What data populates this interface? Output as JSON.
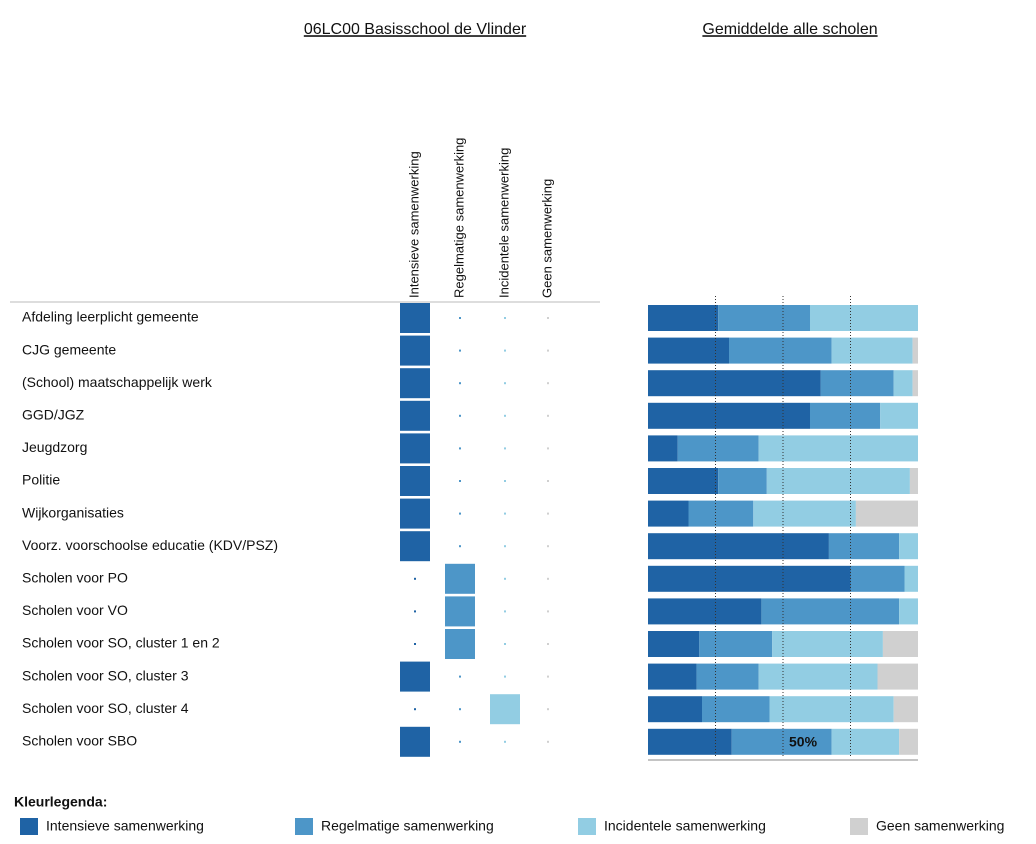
{
  "chart_data": {
    "type": "stacked-bar-matrix",
    "title": "06LC00 Basisschool de Vlinder",
    "comparison_title": "Gemiddelde alle scholen",
    "legend_title": "Kleurlegenda:",
    "categories": [
      "Afdeling leerplicht gemeente",
      "CJG gemeente",
      "(School) maatschappelijk werk",
      "GGD/JGZ",
      "Jeugdzorg",
      "Politie",
      "Wijkorganisaties",
      "Voorz. voorschoolse educatie (KDV/PSZ)",
      "Scholen voor PO",
      "Scholen voor VO",
      "Scholen voor SO, cluster 1 en 2",
      "Scholen voor SO, cluster 3",
      "Scholen voor SO, cluster 4",
      "Scholen voor SBO"
    ],
    "school_choice": [
      0,
      0,
      0,
      0,
      0,
      0,
      0,
      0,
      1,
      1,
      1,
      0,
      2,
      0
    ],
    "series": [
      {
        "name": "Intensieve samenwerking",
        "color": "#1f63a5",
        "values": [
          26,
          30,
          64,
          60,
          11,
          26,
          15,
          67,
          75,
          42,
          19,
          18,
          20,
          31
        ]
      },
      {
        "name": "Regelmatige samenwerking",
        "color": "#4d96c8",
        "values": [
          34,
          38,
          27,
          26,
          30,
          18,
          24,
          26,
          20,
          51,
          27,
          23,
          25,
          37
        ]
      },
      {
        "name": "Incidentele samenwerking",
        "color": "#92cde3",
        "values": [
          40,
          30,
          7,
          14,
          59,
          53,
          38,
          7,
          5,
          7,
          41,
          44,
          46,
          25
        ]
      },
      {
        "name": "Geen samenwerking",
        "color": "#d0d0d0",
        "values": [
          0,
          2,
          2,
          0,
          0,
          3,
          23,
          0,
          0,
          0,
          13,
          15,
          9,
          7
        ]
      }
    ],
    "xlim": [
      0,
      100
    ],
    "xticks": [
      25,
      {
        "value": 50,
        "label": "50%"
      },
      75
    ]
  }
}
